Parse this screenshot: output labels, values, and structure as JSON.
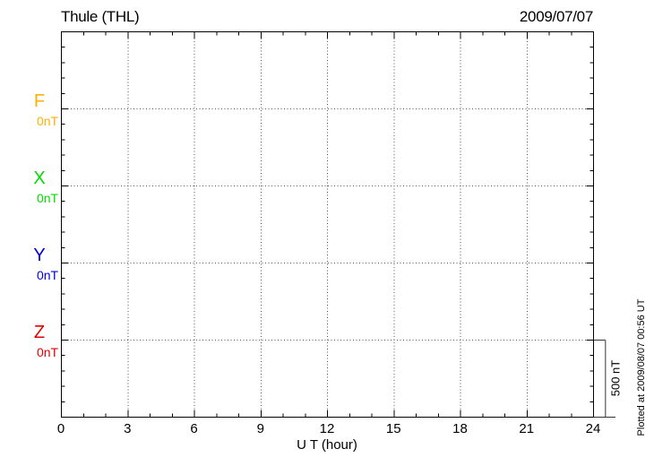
{
  "chart": {
    "title": "Thule (THL)",
    "date": "2009/07/07",
    "xlabel": "U T (hour)",
    "plotted_at": "Plotted at 2009/08/07 00:56 UT"
  },
  "chart_data": {
    "type": "line",
    "title": "Thule (THL)",
    "station": "Thule",
    "station_code": "THL",
    "date": "2009/07/07",
    "xlabel": "U T (hour)",
    "x_axis": {
      "min": 0,
      "max": 24,
      "major_tick_interval": 3,
      "minor_tick_interval": 1,
      "tick_labels": [
        "0",
        "3",
        "6",
        "9",
        "12",
        "15",
        "18",
        "21",
        "24"
      ]
    },
    "y_axis": {
      "nT_per_division": 500,
      "minor_ticks_per_division": 5,
      "divisions": 5
    },
    "series": [
      {
        "name": "F",
        "baseline_label": "0nT",
        "color": "#FFB000",
        "values": []
      },
      {
        "name": "X",
        "baseline_label": "0nT",
        "color": "#00DD00",
        "values": []
      },
      {
        "name": "Y",
        "baseline_label": "0nT",
        "color": "#0000E0",
        "values": []
      },
      {
        "name": "Z",
        "baseline_label": "0nT",
        "color": "#E00000",
        "values": []
      }
    ],
    "scale_bar": {
      "label": "500 nT",
      "value_nT": 500
    },
    "grid": {
      "style": "dotted",
      "vertical_at_hours": [
        3,
        6,
        9,
        12,
        15,
        18,
        21
      ],
      "horizontal_at_series_baselines": true
    }
  }
}
